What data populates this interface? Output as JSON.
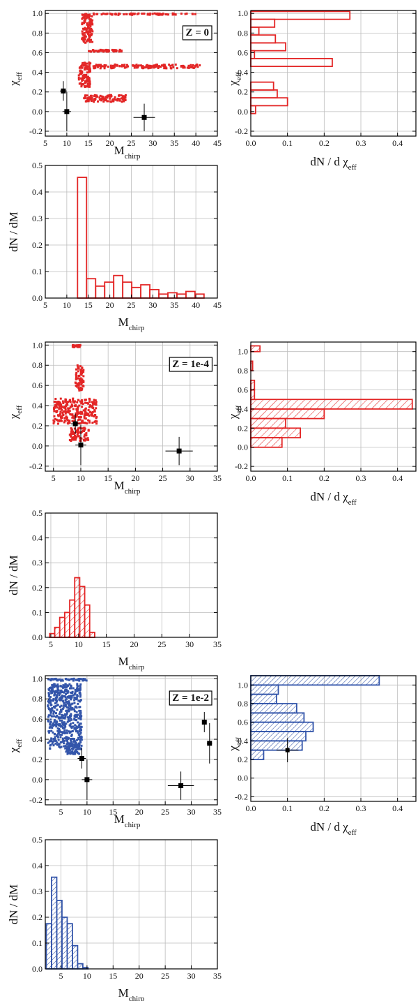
{
  "chart_data": [
    {
      "type": "scatter",
      "panel": "scatter-z0",
      "annotation": "Z = 0",
      "xlabel": "M",
      "xlabel_sub": "chirp",
      "ylabel": "χ",
      "ylabel_sub": "eff",
      "xlim": [
        5,
        45
      ],
      "ylim": [
        -0.25,
        1.03
      ],
      "xticks": [
        "5",
        "10",
        "15",
        "20",
        "25",
        "30",
        "35",
        "40",
        "45"
      ],
      "yticks": [
        "-0.2",
        "0.0",
        "0.2",
        "0.4",
        "0.6",
        "0.8",
        "1.0"
      ],
      "grid": true,
      "series_color": "#e32626",
      "clusters": [
        {
          "x": [
            14,
            40
          ],
          "y": [
            0.985,
            1.0
          ]
        },
        {
          "x": [
            13.5,
            16
          ],
          "y": [
            0.7,
            0.99
          ]
        },
        {
          "x": [
            15,
            23
          ],
          "y": [
            0.61,
            0.63
          ]
        },
        {
          "x": [
            12.8,
            15.5
          ],
          "y": [
            0.25,
            0.5
          ]
        },
        {
          "x": [
            16,
            41
          ],
          "y": [
            0.44,
            0.48
          ]
        },
        {
          "x": [
            14,
            24
          ],
          "y": [
            0.1,
            0.17
          ]
        }
      ],
      "observed": [
        {
          "x": 9.2,
          "y": 0.21,
          "xerr": 0.8,
          "yerr": 0.1
        },
        {
          "x": 10.0,
          "y": 0.0,
          "xerr": 1.0,
          "yerr": 0.2
        },
        {
          "x": 28.0,
          "y": -0.06,
          "xerr": 2.5,
          "yerr": 0.14
        }
      ]
    },
    {
      "type": "bar",
      "panel": "hist-chi-z0",
      "orientation": "horizontal",
      "style": "open",
      "xlabel": "dN / d χ",
      "xlabel_sub": "eff",
      "ylabel": "χ",
      "ylabel_sub": "eff",
      "xlim": [
        0,
        0.45
      ],
      "ylim": [
        -0.25,
        1.03
      ],
      "xticks": [
        "0.0",
        "0.1",
        "0.2",
        "0.3",
        "0.4"
      ],
      "yticks": [
        "-0.2",
        "0.0",
        "0.2",
        "0.4",
        "0.6",
        "0.8",
        "1.0"
      ],
      "series_color": "#e32626",
      "bin_edges": [
        -0.02,
        0.06,
        0.14,
        0.22,
        0.3,
        0.38,
        0.46,
        0.54,
        0.62,
        0.7,
        0.78,
        0.86,
        0.94,
        1.02
      ],
      "values": [
        0.013,
        0.1,
        0.072,
        0.062,
        0.0,
        0.0,
        0.222,
        0.01,
        0.095,
        0.067,
        0.022,
        0.065,
        0.27
      ]
    },
    {
      "type": "bar",
      "panel": "hist-mass-z0",
      "style": "open",
      "xlabel": "M",
      "xlabel_sub": "chirp",
      "ylabel": "dN / dM",
      "xlim": [
        5,
        45
      ],
      "ylim": [
        0,
        0.5
      ],
      "xticks": [
        "5",
        "10",
        "15",
        "20",
        "25",
        "30",
        "35",
        "40",
        "45"
      ],
      "yticks": [
        "0.0",
        "0.1",
        "0.2",
        "0.3",
        "0.4",
        "0.5"
      ],
      "series_color": "#e32626",
      "bin_edges": [
        12.5,
        14.6,
        16.7,
        18.8,
        20.9,
        23.0,
        25.1,
        27.2,
        29.3,
        31.4,
        33.5,
        35.6,
        37.7,
        39.8,
        41.9
      ],
      "values": [
        0.455,
        0.073,
        0.045,
        0.06,
        0.085,
        0.06,
        0.04,
        0.05,
        0.032,
        0.015,
        0.02,
        0.015,
        0.025,
        0.015
      ]
    },
    {
      "type": "scatter",
      "panel": "scatter-z1e4",
      "annotation": "Z = 1e-4",
      "xlabel": "M",
      "xlabel_sub": "chirp",
      "ylabel": "χ",
      "ylabel_sub": "eff",
      "xlim": [
        3.5,
        35
      ],
      "ylim": [
        -0.25,
        1.03
      ],
      "xticks": [
        "5",
        "10",
        "15",
        "20",
        "25",
        "30",
        "35"
      ],
      "yticks": [
        "-0.2",
        "0.0",
        "0.2",
        "0.4",
        "0.6",
        "0.8",
        "1.0"
      ],
      "grid": true,
      "series_color": "#e32626",
      "clusters": [
        {
          "x": [
            8.5,
            10
          ],
          "y": [
            0.98,
            1.0
          ]
        },
        {
          "x": [
            9,
            10.5
          ],
          "y": [
            0.55,
            0.8
          ]
        },
        {
          "x": [
            5,
            13
          ],
          "y": [
            0.22,
            0.47
          ]
        },
        {
          "x": [
            8,
            11.5
          ],
          "y": [
            0.05,
            0.18
          ]
        }
      ],
      "observed": [
        {
          "x": 9.0,
          "y": 0.22,
          "xerr": 0.8,
          "yerr": 0.1
        },
        {
          "x": 10.0,
          "y": 0.01,
          "xerr": 1.0,
          "yerr": 0.2
        },
        {
          "x": 28.0,
          "y": -0.05,
          "xerr": 2.5,
          "yerr": 0.14
        }
      ]
    },
    {
      "type": "bar",
      "panel": "hist-chi-z1e4",
      "orientation": "horizontal",
      "style": "hatched",
      "xlabel": "dN / d χ",
      "xlabel_sub": "eff",
      "ylabel": "χ",
      "ylabel_sub": "eff",
      "xlim": [
        0,
        0.45
      ],
      "ylim": [
        -0.25,
        1.1
      ],
      "xticks": [
        "0.0",
        "0.1",
        "0.2",
        "0.3",
        "0.4"
      ],
      "yticks": [
        "-0.2",
        "0.0",
        "0.2",
        "0.4",
        "0.6",
        "0.8",
        "1.0"
      ],
      "series_color": "#e32626",
      "bin_edges": [
        0.0,
        0.1,
        0.2,
        0.3,
        0.4,
        0.5,
        0.6,
        0.7,
        0.8,
        0.9,
        1.0,
        1.06
      ],
      "values": [
        0.085,
        0.135,
        0.095,
        0.2,
        0.44,
        0.01,
        0.01,
        0.0,
        0.005,
        0.0,
        0.025
      ]
    },
    {
      "type": "bar",
      "panel": "hist-mass-z1e4",
      "style": "hatched",
      "xlabel": "M",
      "xlabel_sub": "chirp",
      "ylabel": "dN / dM",
      "xlim": [
        4,
        35
      ],
      "ylim": [
        0,
        0.5
      ],
      "xticks": [
        "5",
        "10",
        "15",
        "20",
        "25",
        "30",
        "35"
      ],
      "yticks": [
        "0.0",
        "0.1",
        "0.2",
        "0.3",
        "0.4",
        "0.5"
      ],
      "series_color": "#e32626",
      "bin_edges": [
        4.8,
        5.7,
        6.6,
        7.5,
        8.4,
        9.3,
        10.2,
        11.1,
        12.0,
        12.9
      ],
      "values": [
        0.015,
        0.04,
        0.08,
        0.1,
        0.15,
        0.24,
        0.205,
        0.13,
        0.02
      ]
    },
    {
      "type": "scatter",
      "panel": "scatter-z1e2",
      "annotation": "Z = 1e-2",
      "xlabel": "M",
      "xlabel_sub": "chirp",
      "ylabel": "χ",
      "ylabel_sub": "eff",
      "xlim": [
        2,
        35
      ],
      "ylim": [
        -0.25,
        1.03
      ],
      "xticks": [
        "5",
        "10",
        "15",
        "20",
        "25",
        "30",
        "35"
      ],
      "yticks": [
        "-0.2",
        "0.0",
        "0.2",
        "0.4",
        "0.6",
        "0.8",
        "1.0"
      ],
      "grid": true,
      "series_color": "#3355aa",
      "clusters": [
        {
          "x": [
            2.5,
            10
          ],
          "y": [
            0.98,
            1.0
          ]
        },
        {
          "x": [
            2.5,
            9
          ],
          "y": [
            0.3,
            0.95
          ]
        },
        {
          "x": [
            6,
            8.5
          ],
          "y": [
            0.25,
            0.35
          ]
        }
      ],
      "observed": [
        {
          "x": 9.0,
          "y": 0.21,
          "xerr": 0.8,
          "yerr": 0.1
        },
        {
          "x": 10.0,
          "y": 0.0,
          "xerr": 1.0,
          "yerr": 0.2
        },
        {
          "x": 28.0,
          "y": -0.06,
          "xerr": 2.5,
          "yerr": 0.14
        },
        {
          "x": 32.5,
          "y": 0.57,
          "xerr": 0.3,
          "yerr": 0.1
        },
        {
          "x": 33.5,
          "y": 0.36,
          "xerr": 0.5,
          "yerr": 0.2
        }
      ]
    },
    {
      "type": "bar",
      "panel": "hist-chi-z1e2",
      "orientation": "horizontal",
      "style": "hatched",
      "xlabel": "dN / d χ",
      "xlabel_sub": "eff",
      "ylabel": "χ",
      "ylabel_sub": "eff",
      "xlim": [
        0,
        0.45
      ],
      "ylim": [
        -0.25,
        1.1
      ],
      "xticks": [
        "0.0",
        "0.1",
        "0.2",
        "0.3",
        "0.4"
      ],
      "yticks": [
        "-0.2",
        "0.0",
        "0.2",
        "0.4",
        "0.6",
        "0.8",
        "1.0"
      ],
      "series_color": "#3355aa",
      "bin_edges": [
        0.2,
        0.3,
        0.4,
        0.5,
        0.6,
        0.7,
        0.8,
        0.9,
        1.0,
        1.1
      ],
      "values": [
        0.035,
        0.14,
        0.15,
        0.17,
        0.145,
        0.125,
        0.07,
        0.075,
        0.35
      ],
      "observed": [
        {
          "x": 0.1,
          "y": 0.3,
          "xerr": 0.03,
          "yerr": 0.13
        }
      ]
    },
    {
      "type": "bar",
      "panel": "hist-mass-z1e2",
      "style": "hatched",
      "xlabel": "M",
      "xlabel_sub": "chirp",
      "ylabel": "dN / dM",
      "xlim": [
        2,
        35
      ],
      "ylim": [
        0,
        0.5
      ],
      "xticks": [
        "5",
        "10",
        "15",
        "20",
        "25",
        "30",
        "35"
      ],
      "yticks": [
        "0.0",
        "0.1",
        "0.2",
        "0.3",
        "0.4",
        "0.5"
      ],
      "series_color": "#3355aa",
      "bin_edges": [
        2.2,
        3.2,
        4.2,
        5.2,
        6.2,
        7.2,
        8.2,
        9.2,
        10.2
      ],
      "values": [
        0.175,
        0.355,
        0.265,
        0.2,
        0.175,
        0.09,
        0.02,
        0.005
      ]
    }
  ]
}
